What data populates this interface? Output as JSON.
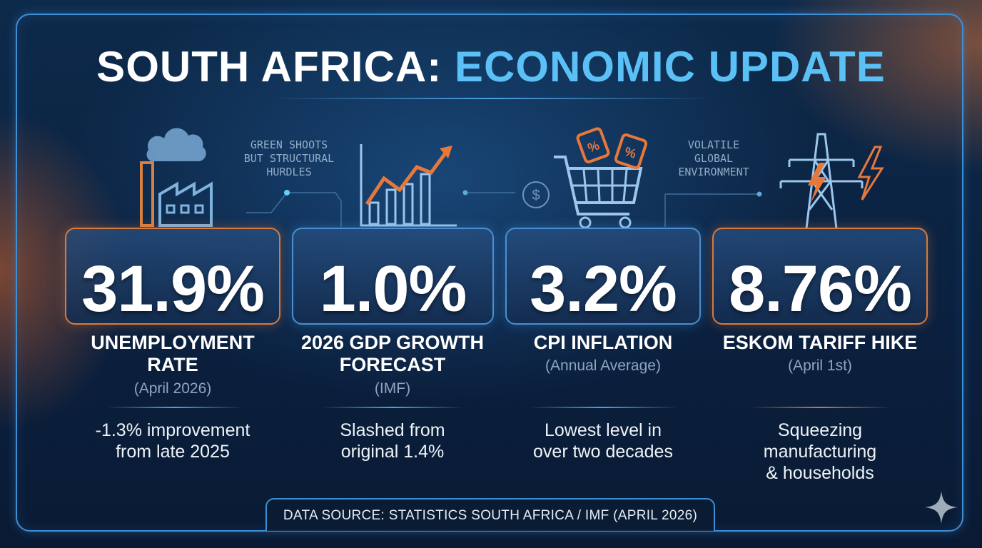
{
  "title": {
    "part1": "SOUTH AFRICA:",
    "part2": "ECONOMIC UPDATE"
  },
  "taglines": [
    {
      "lines": [
        "GREEN SHOOTS",
        "BUT STRUCTURAL",
        "HURDLES"
      ]
    },
    {
      "lines": [
        "VOLATILE",
        "GLOBAL",
        "ENVIRONMENT"
      ]
    }
  ],
  "stats": [
    {
      "value": "31.9%",
      "label_lines": [
        "UNEMPLOYMENT",
        "RATE"
      ],
      "sub": "(April 2026)",
      "desc_lines": [
        "-1.3% improvement",
        "from late 2025"
      ],
      "accent": "orange",
      "icon": "factory-icon"
    },
    {
      "value": "1.0%",
      "label_lines": [
        "2026 GDP GROWTH",
        "FORECAST"
      ],
      "sub": "(IMF)",
      "desc_lines": [
        "Slashed from",
        "original 1.4%"
      ],
      "accent": "blue",
      "icon": "growth-chart-icon"
    },
    {
      "value": "3.2%",
      "label_lines": [
        "CPI INFLATION"
      ],
      "sub": "(Annual Average)",
      "desc_lines": [
        "Lowest level in",
        "over two decades"
      ],
      "accent": "blue",
      "icon": "shopping-cart-icon"
    },
    {
      "value": "8.76%",
      "label_lines": [
        "ESKOM TARIFF HIKE"
      ],
      "sub": "(April 1st)",
      "desc_lines": [
        "Squeezing",
        "manufacturing",
        "& households"
      ],
      "accent": "orange",
      "icon": "power-pylon-icon"
    }
  ],
  "source": "DATA SOURCE: STATISTICS SOUTH AFRICA / IMF (APRIL 2026)",
  "colors": {
    "accent_blue": "#5ac0f5",
    "accent_orange": "#e8783a",
    "frame": "#3d8fd6",
    "background": "#0b2140"
  }
}
